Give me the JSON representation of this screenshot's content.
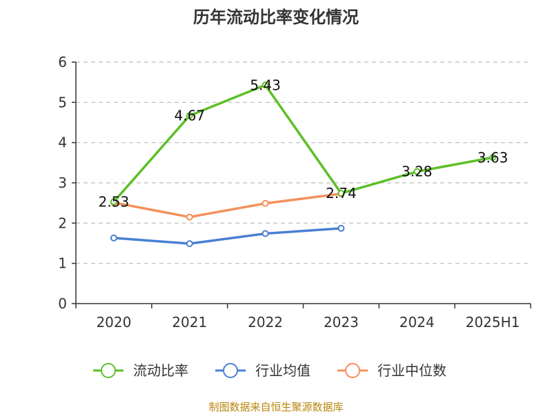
{
  "chart_data": {
    "type": "line",
    "title": "历年流动比率变化情况",
    "categories": [
      "2020",
      "2021",
      "2022",
      "2023",
      "2024",
      "2025H1"
    ],
    "ylim": [
      0,
      6
    ],
    "yticks": [
      "0",
      "1",
      "2",
      "3",
      "4",
      "5",
      "6"
    ],
    "grid": true,
    "legend_position": "bottom",
    "series": [
      {
        "name": "流动比率",
        "color": "#5dbf27",
        "values": [
          2.53,
          4.67,
          5.43,
          2.74,
          3.28,
          3.63
        ],
        "labels": [
          "2.53",
          "4.67",
          "5.43",
          "2.74",
          "3.28",
          "3.63"
        ]
      },
      {
        "name": "行业均值",
        "color": "#4a7fd4",
        "values": [
          1.63,
          1.49,
          1.74,
          1.87,
          null,
          null
        ]
      },
      {
        "name": "行业中位数",
        "color": "#f4905a",
        "values": [
          2.51,
          2.15,
          2.49,
          2.73,
          null,
          null
        ]
      }
    ]
  },
  "source": {
    "text": "制图数据来自恒生聚源数据库",
    "color": "#b8860b"
  }
}
